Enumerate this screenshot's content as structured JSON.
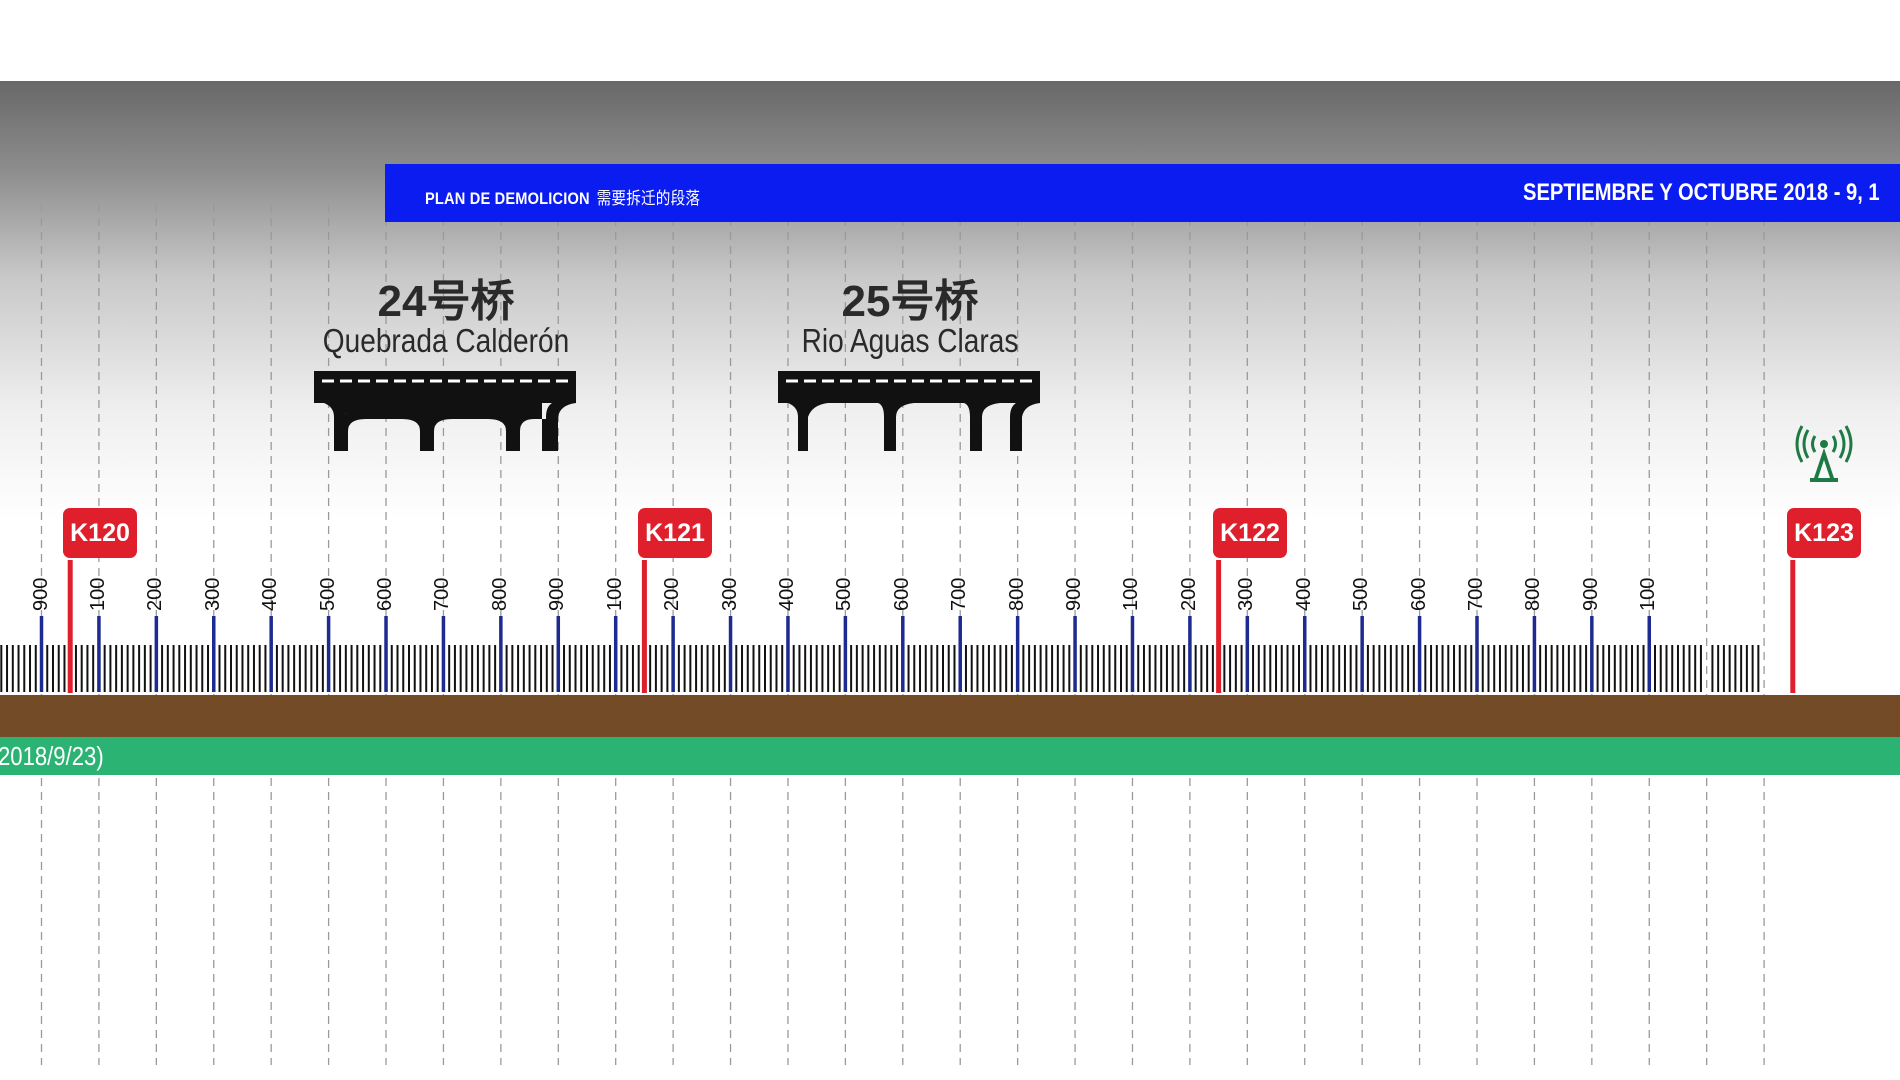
{
  "banner": {
    "left_title": "PLAN DE DEMOLICION",
    "left_title_cn": "需要拆迁的段落",
    "right_title": "SEPTIEMBRE Y OCTUBRE 2018 - 9, 1",
    "color": "#0a1cf0"
  },
  "bridges": [
    {
      "number": "24号桥",
      "name": "Quebrada Calderón",
      "icon": "bridge-icon"
    },
    {
      "number": "25号桥",
      "name": "Rio Aguas Claras",
      "icon": "bridge-icon"
    }
  ],
  "tower": {
    "icon": "radio-tower-icon",
    "color": "#1e7a44"
  },
  "km_markers": [
    {
      "label": "K120",
      "color": "#e01f2c"
    },
    {
      "label": "K121",
      "color": "#e01f2c"
    },
    {
      "label": "K122",
      "color": "#e01f2c"
    },
    {
      "label": "K123",
      "color": "#e01f2c"
    }
  ],
  "chainage_labels": [
    "900",
    "100",
    "200",
    "300",
    "400",
    "500",
    "600",
    "700",
    "800",
    "900",
    "100",
    "200",
    "300",
    "400",
    "500",
    "600",
    "700",
    "800",
    "900",
    "100",
    "200",
    "300",
    "400",
    "500",
    "600",
    "700",
    "800",
    "900",
    "100"
  ],
  "ground": {
    "color": "#744b27"
  },
  "timeline": {
    "text": "2018/9/23)",
    "color": "#2bb373"
  }
}
